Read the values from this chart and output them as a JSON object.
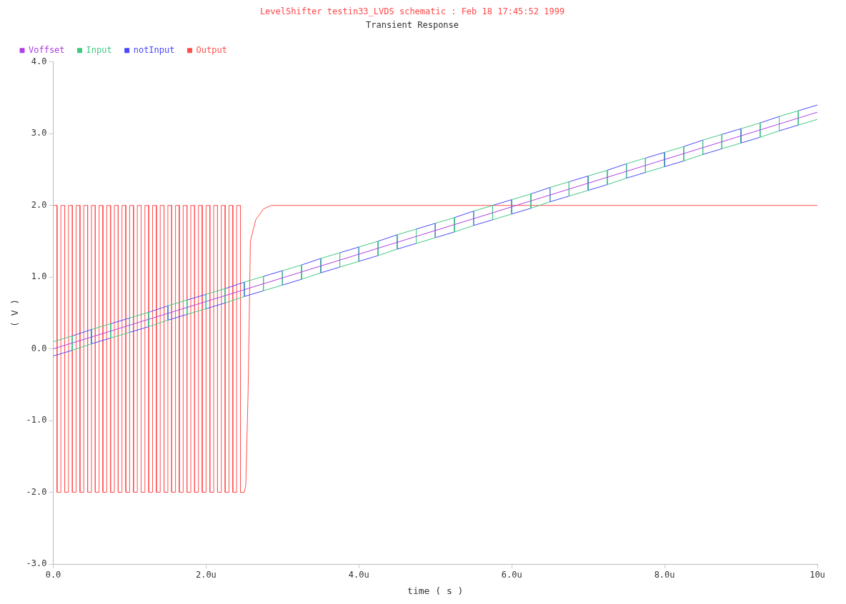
{
  "chart_data": {
    "type": "line",
    "title": "LevelShifter testin33_LVDS schematic : Feb 18 17:45:52 1999",
    "subtitle": "Transient Response",
    "xlabel": "time ( s )",
    "ylabel": "( V )",
    "xlim": [
      0,
      10
    ],
    "xticks": [
      {
        "value": 0,
        "label": "0.0"
      },
      {
        "value": 2,
        "label": "2.0u"
      },
      {
        "value": 4,
        "label": "4.0u"
      },
      {
        "value": 6,
        "label": "6.0u"
      },
      {
        "value": 8,
        "label": "8.0u"
      },
      {
        "value": 10,
        "label": "10u"
      }
    ],
    "ylim": [
      -3,
      4
    ],
    "yticks": [
      {
        "value": -3,
        "label": "-3.0"
      },
      {
        "value": -2,
        "label": "-2.0"
      },
      {
        "value": -1,
        "label": "-1.0"
      },
      {
        "value": 0,
        "label": "0.0"
      },
      {
        "value": 1,
        "label": "1.0"
      },
      {
        "value": 2,
        "label": "2.0"
      },
      {
        "value": 3,
        "label": "3.0"
      },
      {
        "value": 4,
        "label": "4.0"
      }
    ],
    "grid": false,
    "legend": "top",
    "marker": "none",
    "line_style": "solid",
    "series": [
      {
        "name": "Voffset",
        "color": "#b040e0",
        "x": [
          0,
          1,
          2,
          3,
          4,
          5,
          6,
          7,
          8,
          9,
          10
        ],
        "values": [
          0,
          0.33,
          0.66,
          0.99,
          1.32,
          1.65,
          1.98,
          2.31,
          2.64,
          2.97,
          3.3
        ]
      },
      {
        "name": "Input",
        "color": "#40c880",
        "x": [
          0,
          0.25,
          0.25,
          0.5,
          0.5,
          0.75,
          0.75,
          1,
          1,
          1.25,
          1.25,
          1.5,
          1.5,
          1.75,
          1.75,
          2,
          2,
          2.25,
          2.25,
          2.5,
          2.5,
          2.75,
          2.75,
          3,
          3,
          3.25,
          3.25,
          3.5,
          3.5,
          3.75,
          3.75,
          4,
          4,
          4.25,
          4.25,
          4.5,
          4.5,
          4.75,
          4.75,
          5,
          5,
          5.25,
          5.25,
          5.5,
          5.5,
          5.75,
          5.75,
          6,
          6,
          6.25,
          6.25,
          6.5,
          6.5,
          6.75,
          6.75,
          7,
          7,
          7.25,
          7.25,
          7.5,
          7.5,
          7.75,
          7.75,
          8,
          8,
          8.25,
          8.25,
          8.5,
          8.5,
          8.75,
          8.75,
          9,
          9,
          9.25,
          9.25,
          9.5,
          9.5,
          9.75,
          9.75,
          10
        ],
        "values": [
          0.1,
          0.18,
          -0.02,
          0.07,
          0.27,
          0.35,
          0.15,
          0.23,
          0.43,
          0.51,
          0.31,
          0.4,
          0.6,
          0.68,
          0.48,
          0.56,
          0.76,
          0.84,
          0.64,
          0.73,
          0.93,
          1.01,
          0.81,
          0.89,
          1.09,
          1.17,
          0.97,
          1.06,
          1.26,
          1.34,
          1.14,
          1.22,
          1.42,
          1.5,
          1.3,
          1.39,
          1.59,
          1.67,
          1.47,
          1.55,
          1.75,
          1.83,
          1.63,
          1.72,
          1.92,
          2,
          1.8,
          1.88,
          2.08,
          2.16,
          1.96,
          2.05,
          2.25,
          2.33,
          2.13,
          2.21,
          2.41,
          2.49,
          2.29,
          2.38,
          2.58,
          2.66,
          2.46,
          2.54,
          2.74,
          2.82,
          2.62,
          2.71,
          2.91,
          2.99,
          2.79,
          2.87,
          3.07,
          3.15,
          2.95,
          3.04,
          3.24,
          3.32,
          3.12,
          3.2
        ]
      },
      {
        "name": "notInput",
        "color": "#4848ff",
        "x": [
          0,
          0.25,
          0.25,
          0.5,
          0.5,
          0.75,
          0.75,
          1,
          1,
          1.25,
          1.25,
          1.5,
          1.5,
          1.75,
          1.75,
          2,
          2,
          2.25,
          2.25,
          2.5,
          2.5,
          2.75,
          2.75,
          3,
          3,
          3.25,
          3.25,
          3.5,
          3.5,
          3.75,
          3.75,
          4,
          4,
          4.25,
          4.25,
          4.5,
          4.5,
          4.75,
          4.75,
          5,
          5,
          5.25,
          5.25,
          5.5,
          5.5,
          5.75,
          5.75,
          6,
          6,
          6.25,
          6.25,
          6.5,
          6.5,
          6.75,
          6.75,
          7,
          7,
          7.25,
          7.25,
          7.5,
          7.5,
          7.75,
          7.75,
          8,
          8,
          8.25,
          8.25,
          8.5,
          8.5,
          8.75,
          8.75,
          9,
          9,
          9.25,
          9.25,
          9.5,
          9.5,
          9.75,
          9.75,
          10
        ],
        "values": [
          -0.1,
          -0.02,
          0.18,
          0.27,
          0.07,
          0.15,
          0.35,
          0.43,
          0.23,
          0.31,
          0.51,
          0.6,
          0.4,
          0.48,
          0.68,
          0.76,
          0.56,
          0.64,
          0.84,
          0.93,
          0.73,
          0.81,
          1.01,
          1.09,
          0.89,
          0.97,
          1.17,
          1.26,
          1.06,
          1.14,
          1.34,
          1.42,
          1.22,
          1.3,
          1.5,
          1.59,
          1.39,
          1.47,
          1.67,
          1.75,
          1.55,
          1.63,
          1.83,
          1.92,
          1.72,
          1.8,
          2,
          2.08,
          1.88,
          1.96,
          2.16,
          2.25,
          2.05,
          2.13,
          2.33,
          2.41,
          2.21,
          2.29,
          2.49,
          2.58,
          2.38,
          2.46,
          2.66,
          2.74,
          2.54,
          2.62,
          2.82,
          2.91,
          2.71,
          2.79,
          2.99,
          3.07,
          2.87,
          2.95,
          3.15,
          3.24,
          3.04,
          3.12,
          3.32,
          3.4
        ]
      },
      {
        "name": "Output",
        "color": "#ff5050",
        "x": [
          0,
          0.05,
          0.05,
          0.1,
          0.1,
          0.15,
          0.15,
          0.2,
          0.2,
          0.25,
          0.25,
          0.3,
          0.3,
          0.35,
          0.35,
          0.4,
          0.4,
          0.45,
          0.45,
          0.5,
          0.5,
          0.55,
          0.55,
          0.6,
          0.6,
          0.65,
          0.65,
          0.7,
          0.7,
          0.75,
          0.75,
          0.8,
          0.8,
          0.85,
          0.85,
          0.9,
          0.9,
          0.95,
          0.95,
          1,
          1,
          1.05,
          1.05,
          1.1,
          1.1,
          1.15,
          1.15,
          1.2,
          1.2,
          1.25,
          1.25,
          1.3,
          1.3,
          1.35,
          1.35,
          1.4,
          1.4,
          1.45,
          1.45,
          1.5,
          1.5,
          1.55,
          1.55,
          1.6,
          1.6,
          1.65,
          1.65,
          1.7,
          1.7,
          1.75,
          1.75,
          1.8,
          1.8,
          1.85,
          1.85,
          1.9,
          1.9,
          1.95,
          1.95,
          2,
          2,
          2.05,
          2.05,
          2.1,
          2.1,
          2.15,
          2.15,
          2.2,
          2.2,
          2.25,
          2.25,
          2.3,
          2.3,
          2.35,
          2.35,
          2.4,
          2.4,
          2.45,
          2.45,
          2.5,
          2.52,
          2.55,
          2.58,
          2.65,
          2.75,
          2.85,
          10
        ],
        "values": [
          2,
          2,
          -2,
          -2,
          2,
          2,
          -2,
          -2,
          2,
          2,
          -2,
          -2,
          2,
          2,
          -2,
          -2,
          2,
          2,
          -2,
          -2,
          2,
          2,
          -2,
          -2,
          2,
          2,
          -2,
          -2,
          2,
          2,
          -2,
          -2,
          2,
          2,
          -2,
          -2,
          2,
          2,
          -2,
          -2,
          2,
          2,
          -2,
          -2,
          2,
          2,
          -2,
          -2,
          2,
          2,
          -2,
          -2,
          2,
          2,
          -2,
          -2,
          2,
          2,
          -2,
          -2,
          2,
          2,
          -2,
          -2,
          2,
          2,
          -2,
          -2,
          2,
          2,
          -2,
          -2,
          2,
          2,
          -2,
          -2,
          2,
          2,
          -2,
          -2,
          2,
          2,
          -2,
          -2,
          2,
          2,
          -2,
          -2,
          2,
          2,
          -2,
          -2,
          2,
          2,
          -2,
          -2,
          2,
          2,
          -2,
          -2,
          -1.9,
          -0.6,
          1.5,
          1.8,
          1.95,
          2,
          2
        ]
      }
    ]
  }
}
